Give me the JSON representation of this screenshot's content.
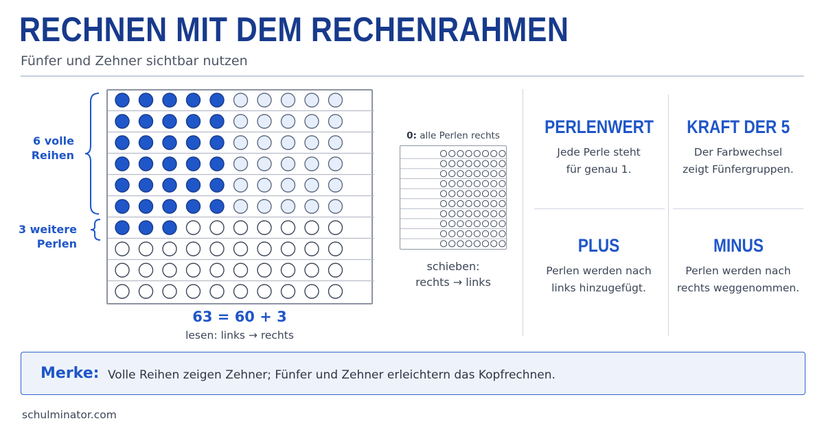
{
  "title": "RECHNEN MIT DEM RECHENRAHMEN",
  "subtitle": "Fünfer und Zehner sichtbar nutzen",
  "abacus": {
    "rows": 10,
    "beads_per_row": 10,
    "filled_beads": 63,
    "brace_full_rows": [
      "6 volle",
      "Reihen"
    ],
    "brace_extra": [
      "3 weitere",
      "Perlen"
    ],
    "equation": "63 = 60 + 3",
    "reading": "lesen: links → rechts"
  },
  "mini_abacus": {
    "label_bold": "0:",
    "label_rest": " alle Perlen rechts",
    "rows": 10,
    "beads_per_row": 8,
    "push_lines": [
      "schieben:",
      "rechts → links"
    ]
  },
  "cards": [
    {
      "title": "PERLENWERT",
      "lines": [
        "Jede Perle steht",
        "für genau 1."
      ]
    },
    {
      "title": "KRAFT DER 5",
      "lines": [
        "Der Farbwechsel",
        "zeigt Fünfergruppen."
      ]
    },
    {
      "title": "PLUS",
      "lines": [
        "Perlen werden nach",
        "links hinzugefügt."
      ]
    },
    {
      "title": "MINUS",
      "lines": [
        "Perlen werden nach",
        "rechts weggenommen."
      ]
    }
  ],
  "note": {
    "label": "Merke:",
    "text": "Volle Reihen zeigen Zehner; Fünfer und Zehner erleichtern das Kopfrechnen."
  },
  "footer": "schulminator.com",
  "colors": {
    "title": "#173a8c",
    "accent": "#1f56c8",
    "bead_dark": "#1f56c8",
    "bead_light": "#e6eefb",
    "bead_empty": "#ffffff",
    "note_bg": "#eef3fb"
  }
}
